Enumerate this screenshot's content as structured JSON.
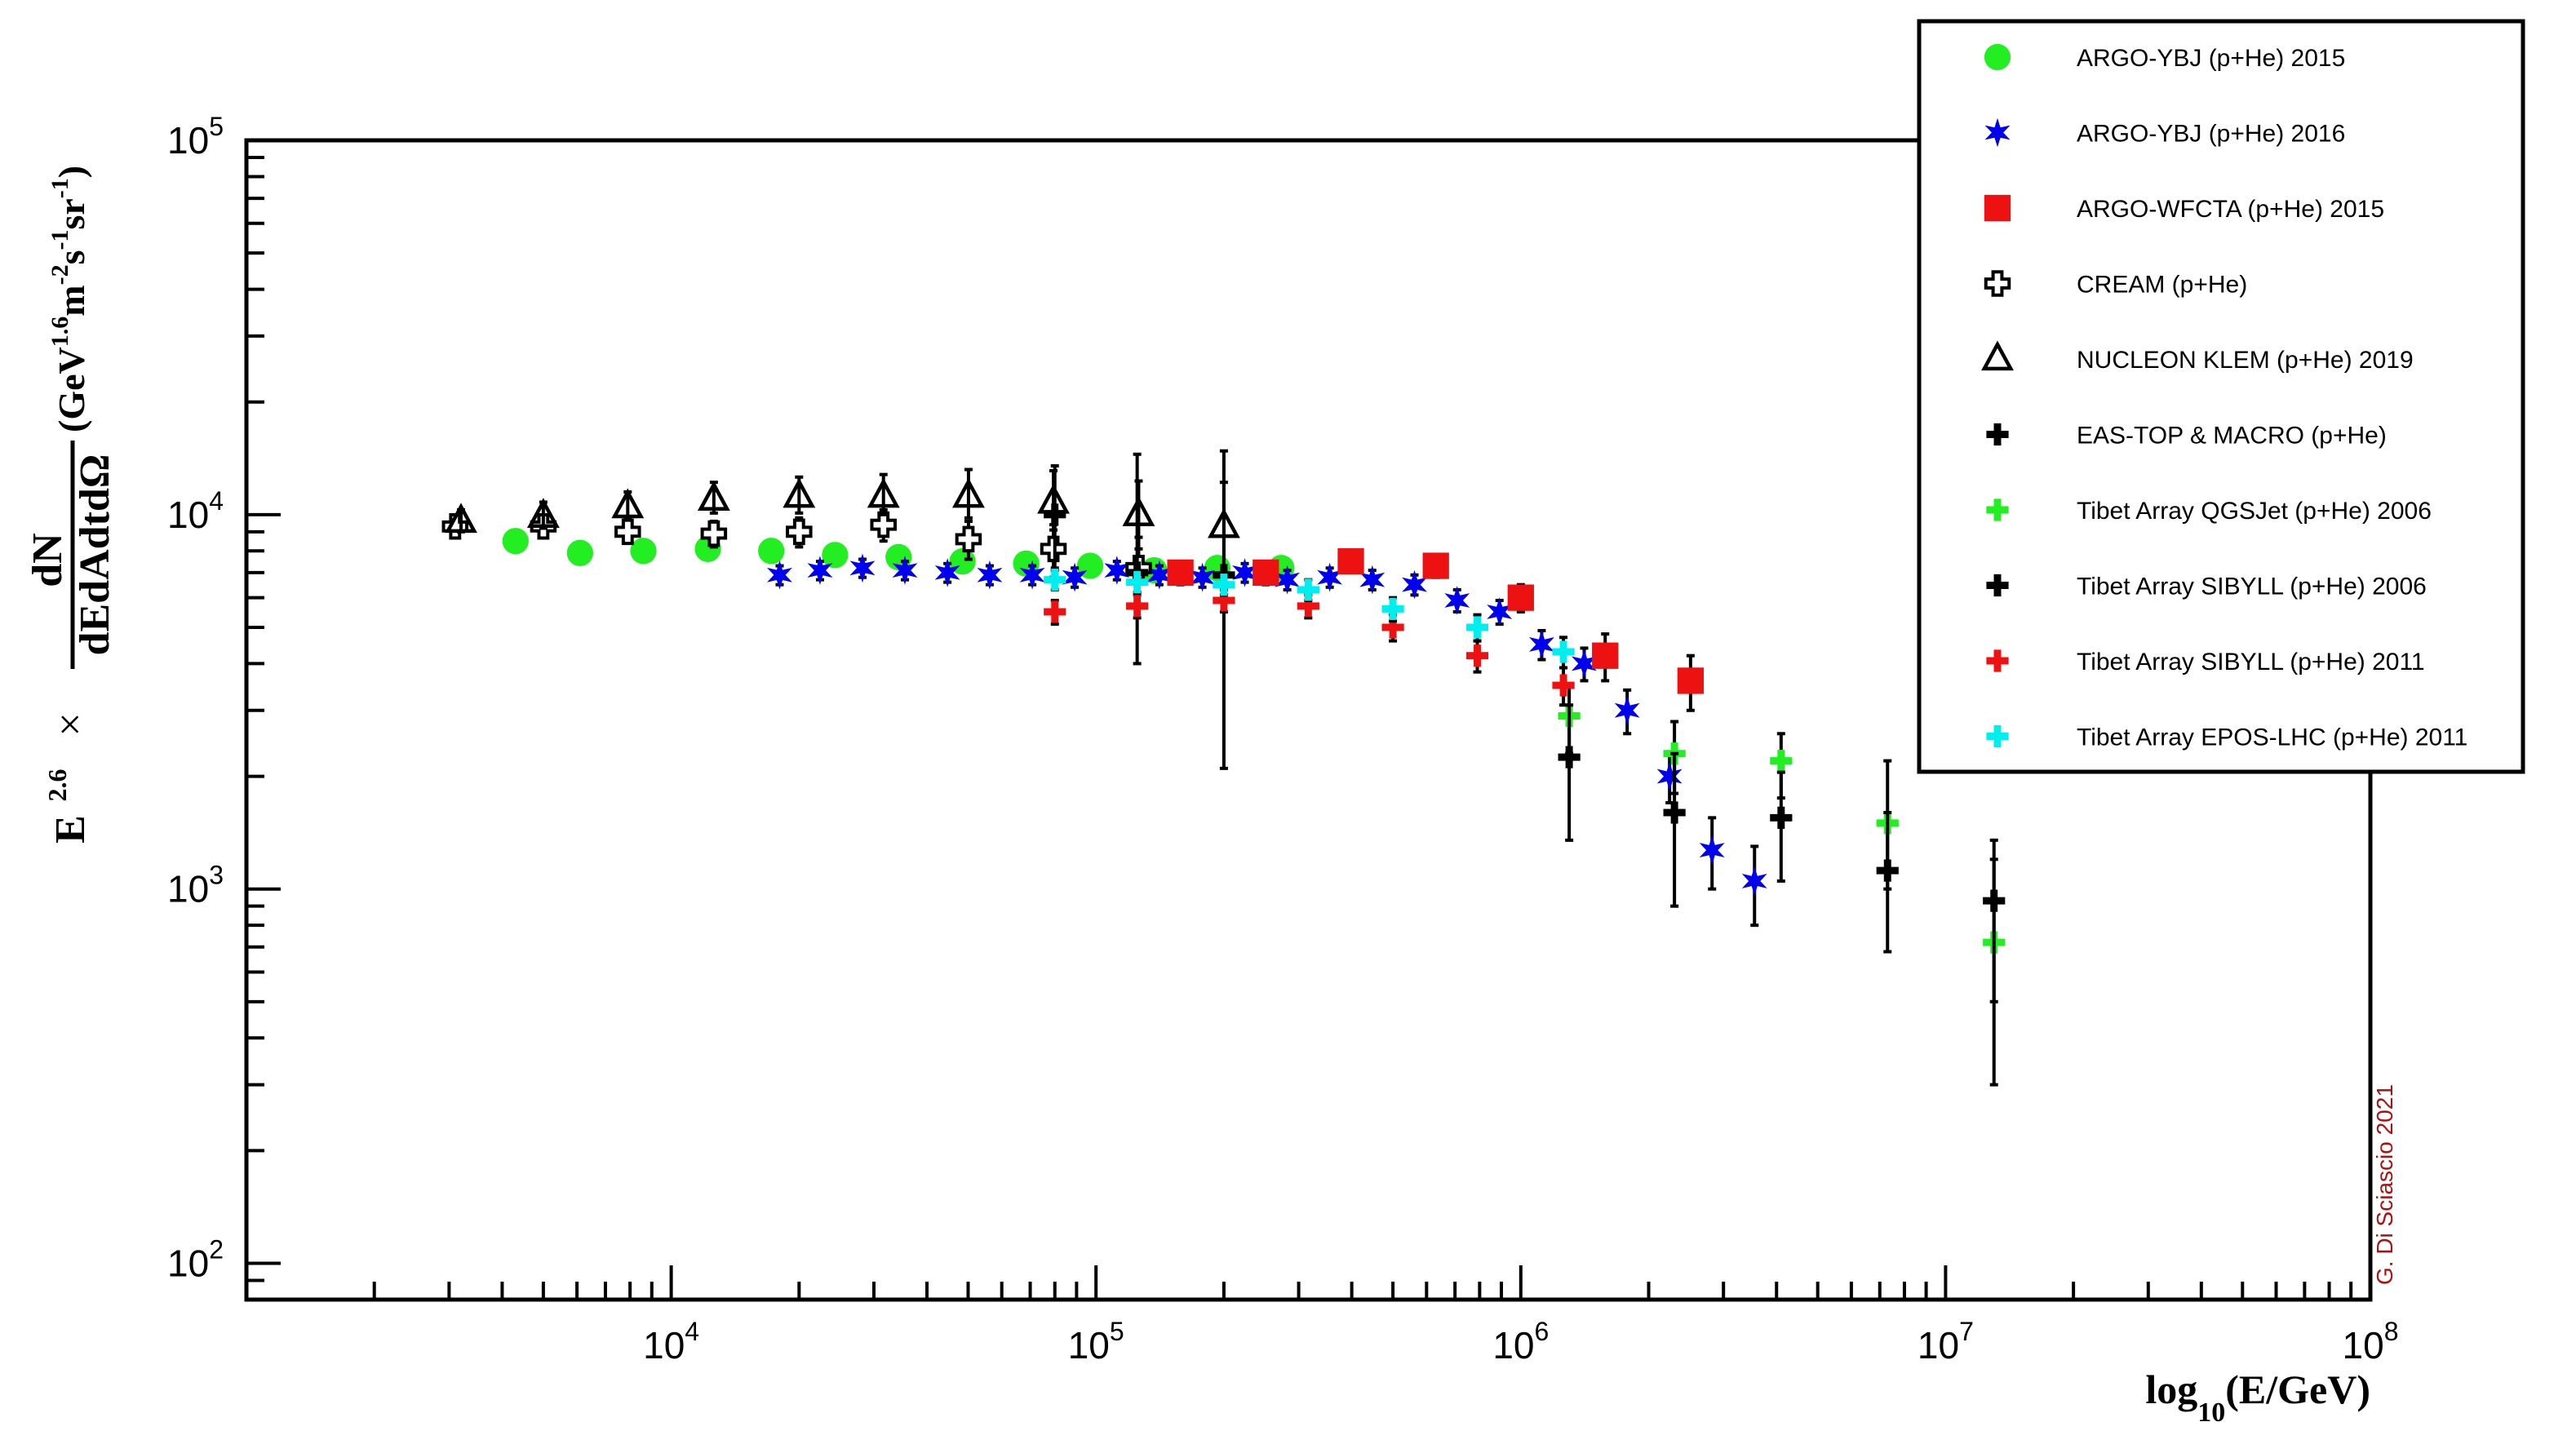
{
  "chart_data": {
    "type": "scatter",
    "x_scale": "log",
    "y_scale": "log",
    "xlim": [
      1000,
      100000000
    ],
    "ylim": [
      80,
      100000
    ],
    "x_ticks": [
      {
        "value": 10000,
        "base": "10",
        "exp": "4"
      },
      {
        "value": 100000,
        "base": "10",
        "exp": "5"
      },
      {
        "value": 1000000,
        "base": "10",
        "exp": "6"
      },
      {
        "value": 10000000,
        "base": "10",
        "exp": "7"
      },
      {
        "value": 100000000,
        "base": "10",
        "exp": "8"
      }
    ],
    "y_ticks": [
      {
        "value": 100,
        "base": "10",
        "exp": "2"
      },
      {
        "value": 1000,
        "base": "10",
        "exp": "3"
      },
      {
        "value": 10000,
        "base": "10",
        "exp": "4"
      },
      {
        "value": 100000,
        "base": "10",
        "exp": "5"
      }
    ],
    "xlabel": {
      "main": "log",
      "sub": "10",
      "rest": "(E/GeV)"
    },
    "ylabel": {
      "prefix": "E",
      "prefix_exp": "2.6",
      "times": "×",
      "frac_num": "dN",
      "frac_den": "dEdAdtdΩ",
      "unit_open": "(GeV",
      "unit_exp1": "1.6",
      "unit_m": "m",
      "unit_exp2": "-2",
      "unit_s": "s",
      "unit_exp3": "-1",
      "unit_sr": "sr",
      "unit_exp4": "-1",
      "unit_close": ")"
    },
    "grid": false,
    "legend_position": "top-right",
    "series": [
      {
        "name": "ARGO-YBJ (p+He) 2015",
        "marker": "circle",
        "color": "#22ee22",
        "points": [
          [
            4300,
            8500
          ],
          [
            6100,
            7900
          ],
          [
            8600,
            8000
          ],
          [
            12200,
            8100
          ],
          [
            17200,
            8000
          ],
          [
            24300,
            7800
          ],
          [
            34300,
            7700
          ],
          [
            48500,
            7500
          ],
          [
            68500,
            7400
          ],
          [
            96900,
            7300
          ],
          [
            137000,
            7100
          ],
          [
            193000,
            7200
          ],
          [
            273000,
            7200
          ]
        ]
      },
      {
        "name": "ARGO-YBJ (p+He) 2016",
        "marker": "star",
        "color": "#0000ee",
        "points": [
          [
            18000,
            6900
          ],
          [
            22400,
            7100
          ],
          [
            28200,
            7200
          ],
          [
            35500,
            7100
          ],
          [
            44700,
            7000
          ],
          [
            56200,
            6900
          ],
          [
            70800,
            6900
          ],
          [
            89100,
            6800
          ],
          [
            112000,
            7100
          ],
          [
            141000,
            6900
          ],
          [
            178000,
            6800
          ],
          [
            224000,
            7000
          ],
          [
            282000,
            6700
          ],
          [
            355000,
            6800
          ],
          [
            447000,
            6700
          ],
          [
            562000,
            6500
          ],
          [
            708000,
            5900
          ],
          [
            891000,
            5500
          ],
          [
            1120000,
            4500
          ],
          [
            1410000,
            4000
          ],
          [
            1780000,
            3000
          ],
          [
            2240000,
            2000
          ],
          [
            2820000,
            1270
          ],
          [
            3550000,
            1050
          ]
        ],
        "y_low": [
          6500,
          6700,
          6800,
          6700,
          6600,
          6500,
          6500,
          6400,
          6700,
          6500,
          6400,
          6600,
          6300,
          6400,
          6300,
          6100,
          5500,
          5100,
          4100,
          3600,
          2600,
          1700,
          1000,
          800
        ],
        "y_high": [
          7300,
          7500,
          7600,
          7500,
          7400,
          7300,
          7300,
          7200,
          7500,
          7300,
          7200,
          7400,
          7100,
          7200,
          7100,
          6900,
          6300,
          5900,
          4900,
          4400,
          3400,
          2300,
          1550,
          1300
        ]
      },
      {
        "name": "ARGO-WFCTA (p+He) 2015",
        "marker": "square",
        "color": "#ee1111",
        "points": [
          [
            158000,
            7000
          ],
          [
            251000,
            7000
          ],
          [
            398000,
            7500
          ],
          [
            631000,
            7300
          ],
          [
            1000000,
            6000
          ],
          [
            1580000,
            4200
          ],
          [
            2510000,
            3600
          ]
        ],
        "y_low": [
          6500,
          6500,
          7000,
          6800,
          5500,
          3600,
          3000
        ],
        "y_high": [
          7500,
          7500,
          8000,
          7800,
          6500,
          4800,
          4200
        ]
      },
      {
        "name": "CREAM (p+He)",
        "marker": "open-cross",
        "color": "#000000",
        "points": [
          [
            3100,
            9300
          ],
          [
            5000,
            9300
          ],
          [
            7900,
            9000
          ],
          [
            12600,
            8900
          ],
          [
            20000,
            9000
          ],
          [
            31600,
            9400
          ],
          [
            50100,
            8600
          ],
          [
            79400,
            8100
          ],
          [
            126000,
            7200
          ]
        ],
        "y_low": [
          8800,
          8800,
          8400,
          8200,
          8200,
          8500,
          7600,
          6800,
          5700
        ],
        "y_high": [
          9800,
          9800,
          9600,
          9600,
          9800,
          10300,
          9600,
          9400,
          8700
        ]
      },
      {
        "name": "NUCLEON KLEM (p+He) 2019",
        "marker": "open-triangle",
        "color": "#000000",
        "points": [
          [
            3200,
            9600
          ],
          [
            5000,
            9900
          ],
          [
            7900,
            10500
          ],
          [
            12600,
            11000
          ],
          [
            20000,
            11200
          ],
          [
            31600,
            11200
          ],
          [
            50100,
            11200
          ],
          [
            79400,
            10800
          ],
          [
            126000,
            10000
          ],
          [
            200000,
            9300
          ]
        ],
        "y_low": [
          9000,
          9200,
          9700,
          10100,
          10100,
          10000,
          9800,
          9100,
          8100,
          6400
        ],
        "y_high": [
          10300,
          10800,
          11500,
          12200,
          12600,
          12800,
          13200,
          13100,
          12300,
          12200
        ]
      },
      {
        "name": "EAS-TOP & MACRO (p+He)",
        "marker": "cross",
        "color": "#000000",
        "points": [
          [
            80000,
            10000
          ],
          [
            125000,
            7000
          ],
          [
            200000,
            6900
          ]
        ],
        "y_low": [
          7200,
          4000,
          2100
        ],
        "y_high": [
          13500,
          14500,
          14800
        ]
      },
      {
        "name": "Tibet Array QGSJet (p+He) 2006",
        "marker": "cross",
        "color": "#22ee22",
        "points": [
          [
            1300000,
            2900
          ],
          [
            2300000,
            2300
          ],
          [
            4100000,
            2200
          ],
          [
            7300000,
            1500
          ],
          [
            13000000,
            720
          ]
        ],
        "y_low": [
          2300,
          1800,
          1750,
          1000,
          300
        ],
        "y_high": [
          3500,
          2800,
          2600,
          2200,
          1200
        ]
      },
      {
        "name": "Tibet Array SIBYLL (p+He) 2006",
        "marker": "cross",
        "color": "#000000",
        "points": [
          [
            1300000,
            2250
          ],
          [
            2300000,
            1600
          ],
          [
            4100000,
            1550
          ],
          [
            7300000,
            1120
          ],
          [
            13000000,
            930
          ]
        ],
        "y_low": [
          1350,
          900,
          1050,
          680,
          500
        ],
        "y_high": [
          3100,
          2300,
          2050,
          1600,
          1350
        ]
      },
      {
        "name": "Tibet Array SIBYLL (p+He) 2011",
        "marker": "cross",
        "color": "#ee1111",
        "points": [
          [
            80000,
            5500
          ],
          [
            125000,
            5700
          ],
          [
            200000,
            5900
          ],
          [
            316000,
            5700
          ],
          [
            500000,
            5000
          ],
          [
            790000,
            4200
          ],
          [
            1260000,
            3500
          ]
        ],
        "y_low": [
          5100,
          5300,
          5500,
          5300,
          4600,
          3800,
          3100
        ],
        "y_high": [
          5900,
          6100,
          6300,
          6100,
          5400,
          4600,
          3900
        ]
      },
      {
        "name": "Tibet Array EPOS-LHC (p+He) 2011",
        "marker": "cross",
        "color": "#00eeee",
        "points": [
          [
            80000,
            6700
          ],
          [
            125000,
            6600
          ],
          [
            200000,
            6500
          ],
          [
            316000,
            6300
          ],
          [
            500000,
            5600
          ],
          [
            790000,
            5000
          ],
          [
            1260000,
            4300
          ]
        ],
        "y_low": [
          6300,
          6200,
          6100,
          5900,
          5200,
          4600,
          3900
        ],
        "y_high": [
          7100,
          7000,
          6900,
          6700,
          6000,
          5400,
          4700
        ]
      }
    ]
  },
  "credit": "G. Di Sciascio 2021"
}
